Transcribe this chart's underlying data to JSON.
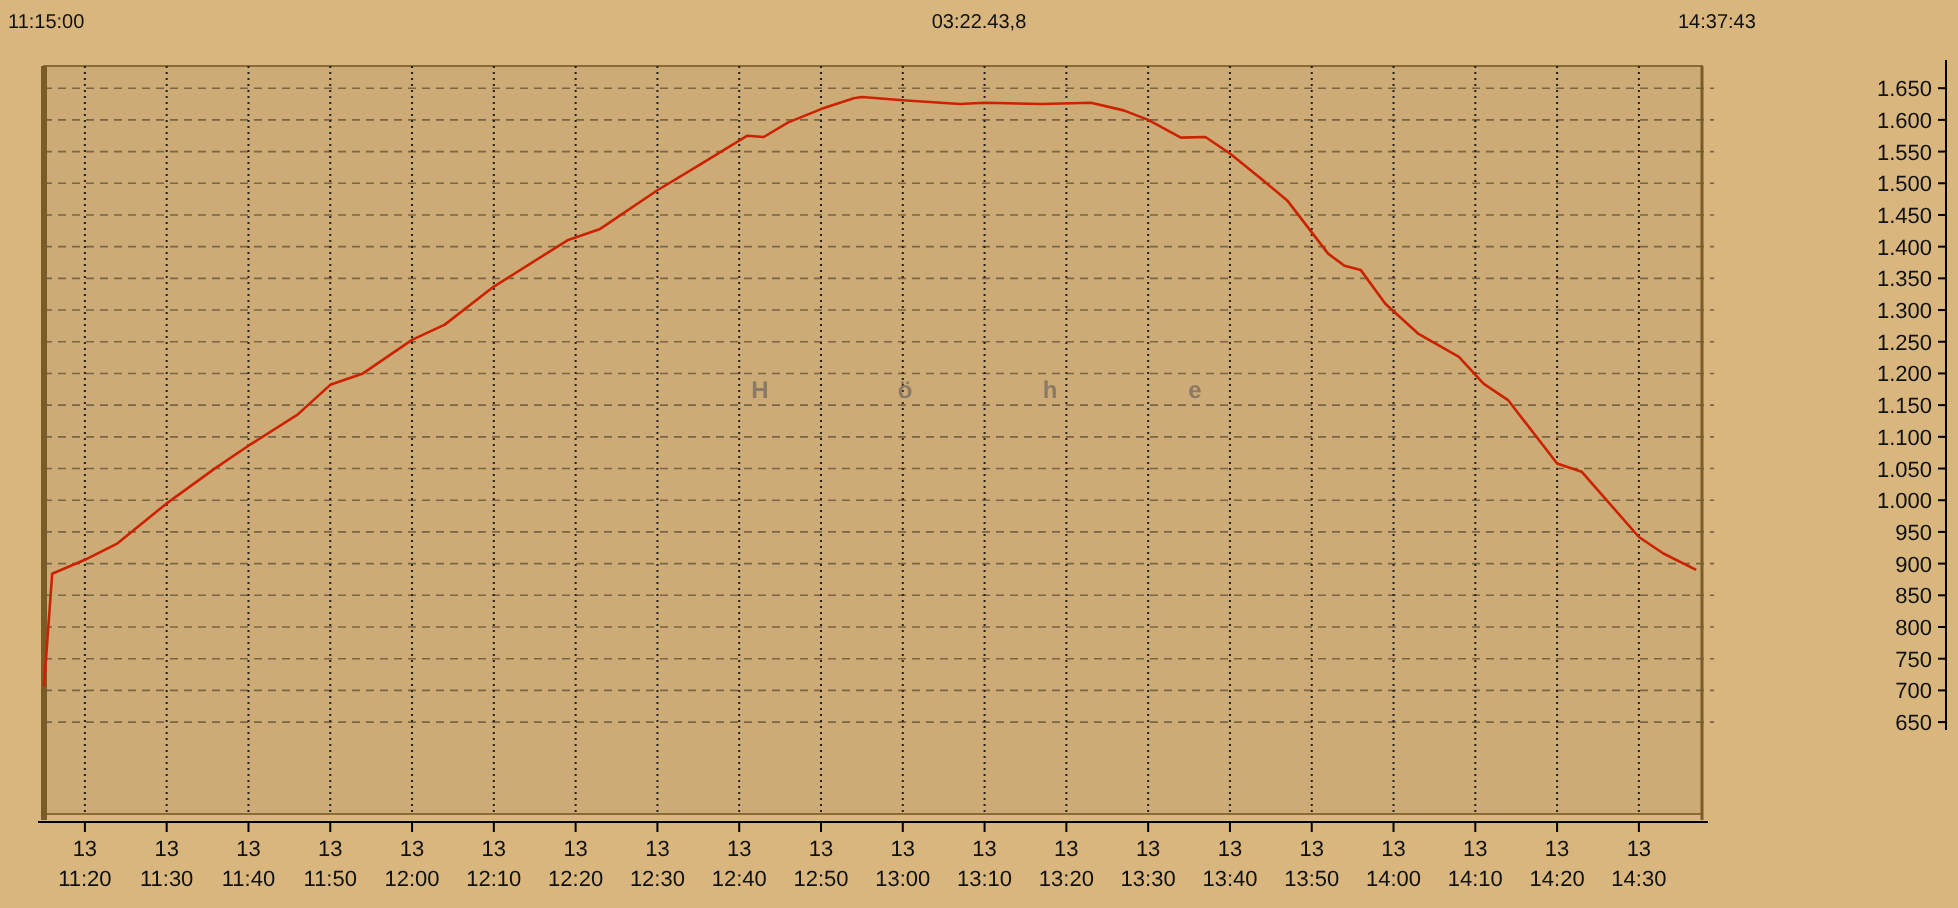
{
  "chart_data": {
    "type": "line",
    "ylabel": "H ö h e",
    "annotations": [
      "11:15:00",
      "03:22.43,8",
      "14:37:43"
    ],
    "xlim": [
      "2000-01-13T11:15:00",
      "2000-01-13T14:37:43"
    ],
    "ylim": [
      505,
      1685
    ],
    "xticks": [
      {
        "value": "2000-01-13T11:20",
        "label": "13\n11:20"
      },
      {
        "value": "2000-01-13T11:30",
        "label": "13\n11:30"
      },
      {
        "value": "2000-01-13T11:40",
        "label": "13\n11:40"
      },
      {
        "value": "2000-01-13T11:50",
        "label": "13\n11:50"
      },
      {
        "value": "2000-01-13T12:00",
        "label": "13\n12:00"
      },
      {
        "value": "2000-01-13T12:10",
        "label": "13\n12:10"
      },
      {
        "value": "2000-01-13T12:20",
        "label": "13\n12:20"
      },
      {
        "value": "2000-01-13T12:30",
        "label": "13\n12:30"
      },
      {
        "value": "2000-01-13T12:40",
        "label": "13\n12:40"
      },
      {
        "value": "2000-01-13T12:50",
        "label": "13\n12:50"
      },
      {
        "value": "2000-01-13T13:00",
        "label": "13\n13:00"
      },
      {
        "value": "2000-01-13T13:10",
        "label": "13\n13:10"
      },
      {
        "value": "2000-01-13T13:20",
        "label": "13\n13:20"
      },
      {
        "value": "2000-01-13T13:30",
        "label": "13\n13:30"
      },
      {
        "value": "2000-01-13T13:40",
        "label": "13\n13:40"
      },
      {
        "value": "2000-01-13T13:50",
        "label": "13\n13:50"
      },
      {
        "value": "2000-01-13T14:00",
        "label": "13\n14:00"
      },
      {
        "value": "2000-01-13T14:10",
        "label": "13\n14:10"
      },
      {
        "value": "2000-01-13T14:20",
        "label": "13\n14:20"
      },
      {
        "value": "2000-01-13T14:30",
        "label": "13\n14:30"
      }
    ],
    "yticks": [
      650,
      700,
      750,
      800,
      850,
      900,
      950,
      {
        "value": 1000,
        "label": "1.000"
      },
      {
        "value": 1050,
        "label": "1.050"
      },
      {
        "value": 1100,
        "label": "1.100"
      },
      {
        "value": 1150,
        "label": "1.150"
      },
      {
        "value": 1200,
        "label": "1.200"
      },
      {
        "value": 1250,
        "label": "1.250"
      },
      {
        "value": 1300,
        "label": "1.300"
      },
      {
        "value": 1350,
        "label": "1.350"
      },
      {
        "value": 1400,
        "label": "1.400"
      },
      {
        "value": 1450,
        "label": "1.450"
      },
      {
        "value": 1500,
        "label": "1.500"
      },
      {
        "value": 1550,
        "label": "1.550"
      },
      {
        "value": 1600,
        "label": "1.600"
      },
      {
        "value": 1650,
        "label": "1.650"
      }
    ],
    "grid": true,
    "series": [
      {
        "color": "#cc2200",
        "x": [
          "2000-01-13T11:15",
          "2000-01-13T11:16",
          "2000-01-13T11:20",
          "2000-01-13T11:24",
          "2000-01-13T11:30",
          "2000-01-13T11:36",
          "2000-01-13T11:40",
          "2000-01-13T11:46",
          "2000-01-13T11:50",
          "2000-01-13T11:54",
          "2000-01-13T12:00",
          "2000-01-13T12:04",
          "2000-01-13T12:10",
          "2000-01-13T12:19",
          "2000-01-13T12:23",
          "2000-01-13T12:30",
          "2000-01-13T12:35",
          "2000-01-13T12:41",
          "2000-01-13T12:43",
          "2000-01-13T12:46",
          "2000-01-13T12:50",
          "2000-01-13T12:54",
          "2000-01-13T12:55",
          "2000-01-13T13:00",
          "2000-01-13T13:07",
          "2000-01-13T13:10",
          "2000-01-13T13:17",
          "2000-01-13T13:23",
          "2000-01-13T13:27",
          "2000-01-13T13:30",
          "2000-01-13T13:34",
          "2000-01-13T13:37",
          "2000-01-13T13:40",
          "2000-01-13T13:44",
          "2000-01-13T13:47",
          "2000-01-13T13:52",
          "2000-01-13T13:54",
          "2000-01-13T13:56",
          "2000-01-13T13:59",
          "2000-01-13T14:03",
          "2000-01-13T14:08",
          "2000-01-13T14:11",
          "2000-01-13T14:14",
          "2000-01-13T14:20",
          "2000-01-13T14:23",
          "2000-01-13T14:30",
          "2000-01-13T14:33",
          "2000-01-13T14:37"
        ],
        "values": [
          706,
          884,
          906,
          932,
          995,
          1051,
          1086,
          1135,
          1182,
          1200,
          1253,
          1277,
          1337,
          1410,
          1428,
          1489,
          1528,
          1575,
          1573,
          1596,
          1617,
          1634,
          1636,
          1631,
          1625,
          1627,
          1625,
          1627,
          1615,
          1600,
          1572,
          1573,
          1547,
          1505,
          1473,
          1389,
          1370,
          1363,
          1310,
          1263,
          1226,
          1184,
          1158,
          1058,
          1045,
          942,
          916,
          890
        ]
      }
    ]
  }
}
